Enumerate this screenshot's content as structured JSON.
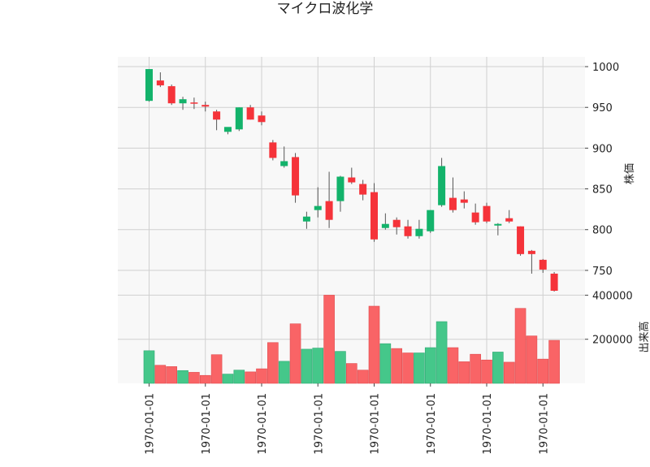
{
  "chart_data": {
    "type": "candlestick",
    "title": "マイクロ波化学",
    "colors": {
      "up": "#13b36b",
      "down": "#f5333a",
      "volume_up": "#45c78a",
      "volume_down": "#f96466",
      "grid": "#d0d0d0",
      "panel_bg": "#f8f8f8",
      "wick": "#555555"
    },
    "price_panel": {
      "ylabel": "株価",
      "ylim": [
        725,
        1012
      ],
      "yticks": [
        750,
        800,
        850,
        900,
        950,
        1000
      ],
      "ytick_labels": [
        "750",
        "800",
        "850",
        "900",
        "950",
        "1000"
      ],
      "axis_side": "right",
      "grid": true
    },
    "volume_panel": {
      "ylabel": "出来高",
      "ylim": [
        0,
        420000
      ],
      "yticks": [
        200000,
        400000
      ],
      "ytick_labels": [
        "200000",
        "400000"
      ],
      "axis_side": "right",
      "grid": true
    },
    "x_tick_indices": [
      0,
      5,
      10,
      15,
      20,
      25,
      30,
      35
    ],
    "x_tick_labels": [
      "1970-01-01",
      "1970-01-01",
      "1970-01-01",
      "1970-01-01",
      "1970-01-01",
      "1970-01-01",
      "1970-01-01",
      "1970-01-01"
    ],
    "candles": [
      {
        "open": 958,
        "high": 997,
        "low": 957,
        "close": 997,
        "volume": 148000
      },
      {
        "open": 983,
        "high": 993,
        "low": 975,
        "close": 977,
        "volume": 82000
      },
      {
        "open": 976,
        "high": 978,
        "low": 953,
        "close": 955,
        "volume": 76000
      },
      {
        "open": 955,
        "high": 963,
        "low": 947,
        "close": 960,
        "volume": 58000
      },
      {
        "open": 956,
        "high": 962,
        "low": 948,
        "close": 955,
        "volume": 50000
      },
      {
        "open": 953,
        "high": 957,
        "low": 945,
        "close": 951,
        "volume": 36000
      },
      {
        "open": 945,
        "high": 947,
        "low": 922,
        "close": 935,
        "volume": 130000
      },
      {
        "open": 920,
        "high": 925,
        "low": 917,
        "close": 926,
        "volume": 42000
      },
      {
        "open": 923,
        "high": 950,
        "low": 921,
        "close": 950,
        "volume": 60000
      },
      {
        "open": 950,
        "high": 953,
        "low": 935,
        "close": 935,
        "volume": 52000
      },
      {
        "open": 940,
        "high": 945,
        "low": 928,
        "close": 932,
        "volume": 66000
      },
      {
        "open": 907,
        "high": 910,
        "low": 885,
        "close": 888,
        "volume": 185000
      },
      {
        "open": 878,
        "high": 902,
        "low": 876,
        "close": 884,
        "volume": 100000
      },
      {
        "open": 889,
        "high": 894,
        "low": 833,
        "close": 842,
        "volume": 270000
      },
      {
        "open": 810,
        "high": 822,
        "low": 801,
        "close": 816,
        "volume": 155000
      },
      {
        "open": 824,
        "high": 852,
        "low": 815,
        "close": 829,
        "volume": 160000
      },
      {
        "open": 835,
        "high": 871,
        "low": 802,
        "close": 812,
        "volume": 400000
      },
      {
        "open": 835,
        "high": 866,
        "low": 822,
        "close": 865,
        "volume": 145000
      },
      {
        "open": 864,
        "high": 876,
        "low": 856,
        "close": 858,
        "volume": 90000
      },
      {
        "open": 856,
        "high": 861,
        "low": 836,
        "close": 843,
        "volume": 60000
      },
      {
        "open": 846,
        "high": 857,
        "low": 785,
        "close": 788,
        "volume": 350000
      },
      {
        "open": 802,
        "high": 820,
        "low": 800,
        "close": 807,
        "volume": 180000
      },
      {
        "open": 812,
        "high": 815,
        "low": 794,
        "close": 803,
        "volume": 158000
      },
      {
        "open": 804,
        "high": 812,
        "low": 789,
        "close": 792,
        "volume": 138000
      },
      {
        "open": 792,
        "high": 812,
        "low": 789,
        "close": 801,
        "volume": 138000
      },
      {
        "open": 798,
        "high": 824,
        "low": 796,
        "close": 824,
        "volume": 162000
      },
      {
        "open": 830,
        "high": 888,
        "low": 828,
        "close": 878,
        "volume": 280000
      },
      {
        "open": 839,
        "high": 864,
        "low": 821,
        "close": 824,
        "volume": 162000
      },
      {
        "open": 837,
        "high": 847,
        "low": 826,
        "close": 833,
        "volume": 98000
      },
      {
        "open": 821,
        "high": 832,
        "low": 806,
        "close": 809,
        "volume": 132000
      },
      {
        "open": 829,
        "high": 833,
        "low": 808,
        "close": 810,
        "volume": 106000
      },
      {
        "open": 805,
        "high": 808,
        "low": 793,
        "close": 807,
        "volume": 142000
      },
      {
        "open": 814,
        "high": 824,
        "low": 808,
        "close": 810,
        "volume": 96000
      },
      {
        "open": 804,
        "high": 804,
        "low": 768,
        "close": 770,
        "volume": 340000
      },
      {
        "open": 774,
        "high": 775,
        "low": 746,
        "close": 770,
        "volume": 215000
      },
      {
        "open": 763,
        "high": 764,
        "low": 747,
        "close": 751,
        "volume": 110000
      },
      {
        "open": 746,
        "high": 748,
        "low": 724,
        "close": 725,
        "volume": 195000
      }
    ]
  }
}
